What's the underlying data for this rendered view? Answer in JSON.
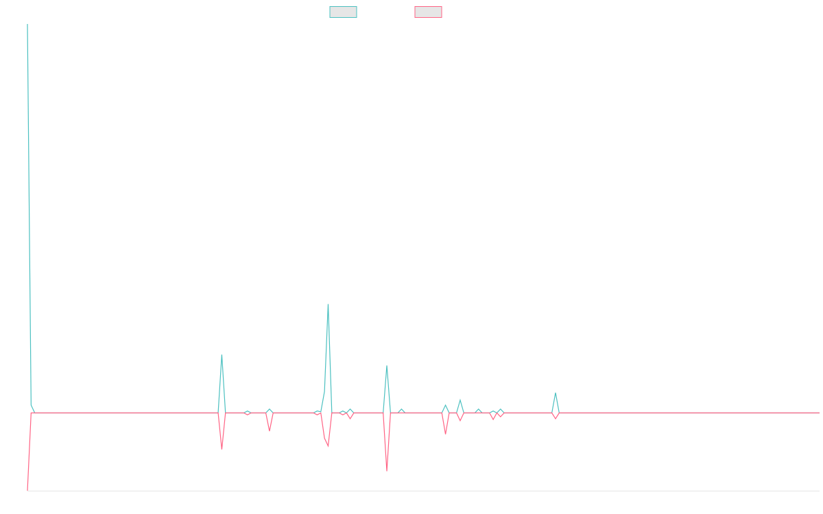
{
  "chart_data": {
    "type": "line",
    "x": [
      0,
      1,
      2,
      52,
      53,
      54,
      59,
      60,
      61,
      65,
      66,
      67,
      78,
      79,
      80,
      81,
      82,
      83,
      85,
      86,
      87,
      88,
      89,
      97,
      98,
      99,
      101,
      102,
      103,
      113,
      114,
      115,
      117,
      118,
      119,
      122,
      123,
      124,
      126,
      127,
      128,
      129,
      130,
      143,
      144,
      145,
      216
    ],
    "series": [
      {
        "color": "#4bc0c0",
        "values": [
          100,
          2,
          0,
          0,
          15,
          0,
          0,
          0.5,
          0,
          0,
          1,
          0,
          0,
          0.5,
          0.3,
          5.5,
          28,
          0,
          0,
          0.5,
          0,
          1,
          0,
          0,
          12.2,
          0,
          0,
          1,
          0,
          0,
          2,
          0,
          0,
          3.3,
          0,
          0,
          1,
          0,
          0,
          0.5,
          0,
          1,
          0,
          0,
          5.2,
          0,
          0
        ]
      },
      {
        "color": "#ff6384",
        "values": [
          -20,
          0,
          0,
          0,
          -9.4,
          0,
          0,
          -0.5,
          0,
          0,
          -4.7,
          0,
          0,
          -0.5,
          0,
          -6.5,
          -8.5,
          0,
          0,
          -0.5,
          0,
          -1.5,
          0,
          0,
          -15,
          0,
          0,
          0,
          0,
          0,
          -5.5,
          0,
          0,
          -2,
          0,
          0,
          0,
          0,
          0,
          -1.7,
          0,
          -1,
          0,
          0,
          -1.5,
          0,
          0
        ]
      }
    ],
    "xlim": [
      0,
      216
    ],
    "ylim": [
      -20,
      100
    ],
    "grid": false
  }
}
